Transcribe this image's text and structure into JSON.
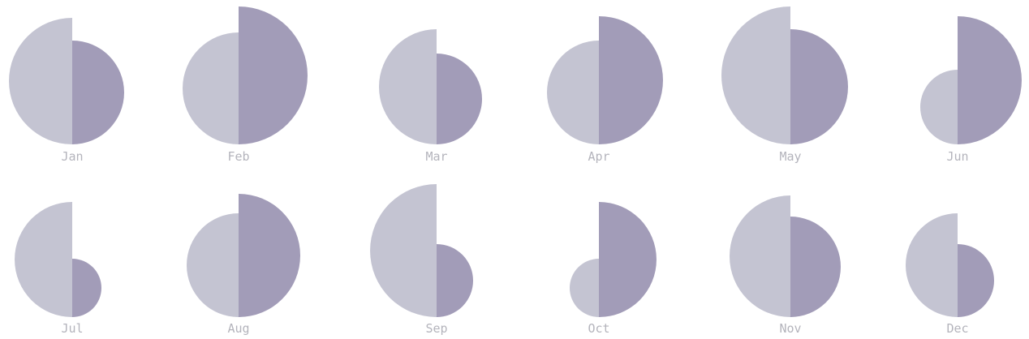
{
  "chart_data": {
    "type": "paired-half-circle",
    "colors": {
      "left": "#c4c4d2",
      "right": "#a29cb8"
    },
    "months": [
      {
        "label": "Jan",
        "left": 78,
        "right": 64
      },
      {
        "label": "Feb",
        "left": 69,
        "right": 85
      },
      {
        "label": "Mar",
        "left": 71,
        "right": 56
      },
      {
        "label": "Apr",
        "left": 64,
        "right": 79
      },
      {
        "label": "May",
        "left": 85,
        "right": 71
      },
      {
        "label": "Jun",
        "left": 46,
        "right": 79
      },
      {
        "label": "Jul",
        "left": 71,
        "right": 36
      },
      {
        "label": "Aug",
        "left": 64,
        "right": 76
      },
      {
        "label": "Sep",
        "left": 82,
        "right": 45
      },
      {
        "label": "Oct",
        "left": 36,
        "right": 71
      },
      {
        "label": "Nov",
        "left": 75,
        "right": 62
      },
      {
        "label": "Dec",
        "left": 64,
        "right": 45
      }
    ]
  }
}
